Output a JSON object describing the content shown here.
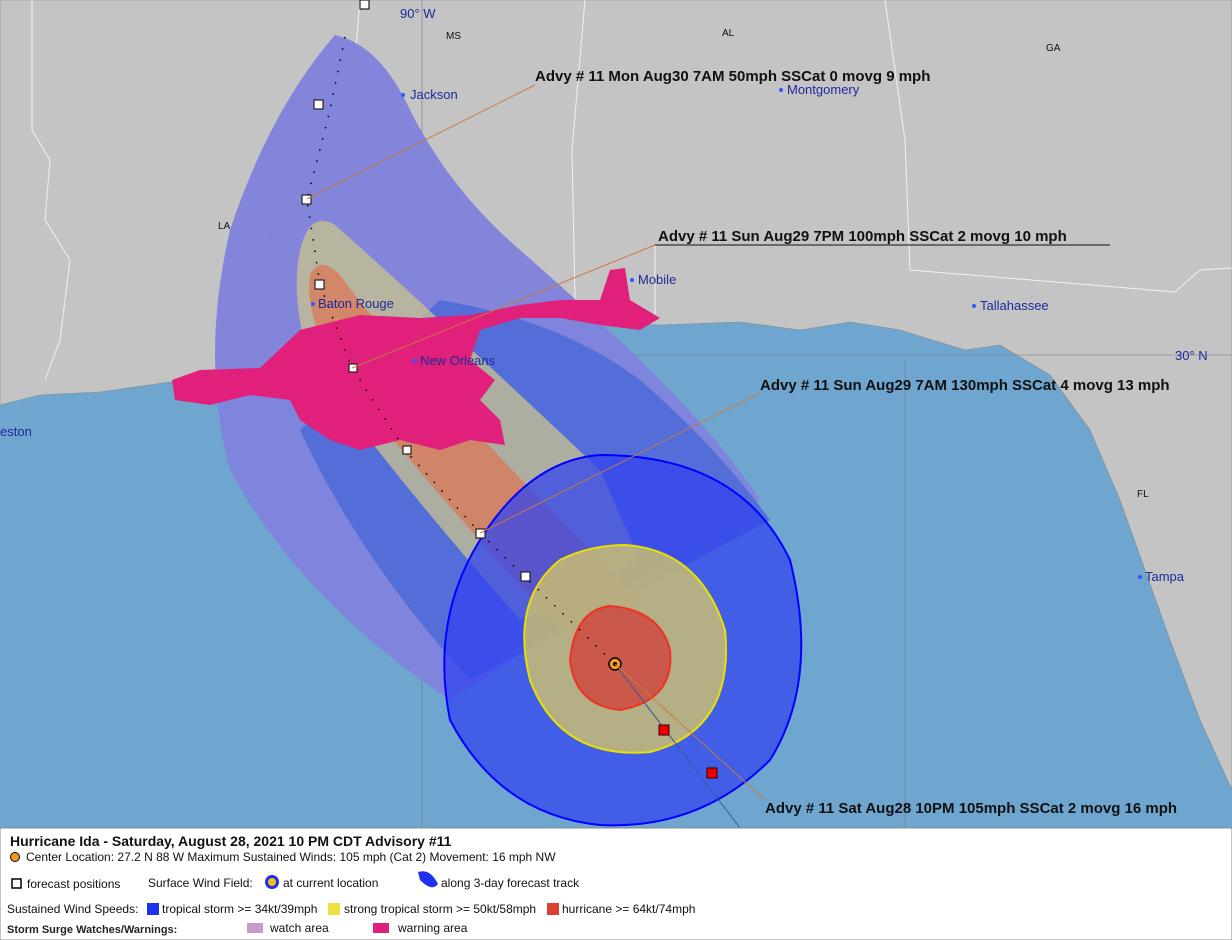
{
  "map": {
    "lon_label": "90° W",
    "lat_label": "30° N",
    "states": [
      "MS",
      "AL",
      "GA",
      "LA",
      "FL"
    ],
    "cities": [
      "Jackson",
      "Montgomery",
      "Mobile",
      "Baton Rouge",
      "New Orleans",
      "Tallahassee",
      "Tampa",
      "eston"
    ],
    "annotations": [
      "Advy # 11 Mon Aug30 7AM  50mph SSCat 0 movg 9 mph",
      "Advy # 11 Sun Aug29 7PM  100mph SSCat 2 movg 10 mph",
      "Advy # 11 Sun Aug29 7AM  130mph SSCat 4 movg 13 mph",
      "Advy # 11 Sat Aug28 10PM  105mph SSCat 2 movg 16 mph"
    ]
  },
  "legend": {
    "title": "Hurricane Ida  -  Saturday, August 28, 2021  10 PM CDT   Advisory #11",
    "details": "Center Location: 27.2 N  88 W   Maximum Sustained Winds: 105 mph (Cat 2) Movement: 16 mph NW",
    "forecast_positions": "forecast positions",
    "wind_field": "Surface Wind Field:",
    "current_location": "at current location",
    "forecast_track": "along 3-day forecast track",
    "wind_speeds": "Sustained Wind Speeds:",
    "tropical_storm": "tropical storm >= 34kt/39mph",
    "strong_tropical_storm": "strong tropical storm >= 50kt/58mph",
    "hurricane": "hurricane >= 64kt/74mph",
    "surge": "Storm Surge Watches/Warnings:",
    "watch": "watch area",
    "warning": "warning area"
  }
}
